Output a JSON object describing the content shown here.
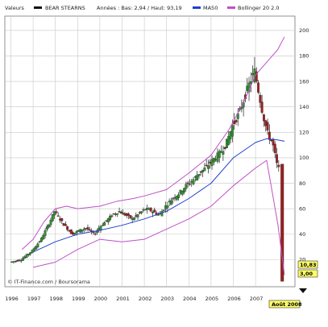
{
  "legend": {
    "label": "Valeurs",
    "series_name": "BEAR STEARNS",
    "range_text": "Années : Bas: 2,94 / Haut: 93,19",
    "ma_label": "MA50",
    "bollinger_label": "Bollinger 20 2.0"
  },
  "credit": "© IT-Finance.com / Boursorama",
  "price_tags": [
    "10,83",
    "3,00"
  ],
  "date_tag": "Août 2008",
  "colors": {
    "price_black": "#111111",
    "candle_up": "#2f8f2f",
    "candle_down": "#a02020",
    "ma50": "#1f3fd0",
    "bollinger": "#c050c8",
    "grid": "#c8c8c8",
    "tag_bg": "#ffff66"
  },
  "chart_data": {
    "type": "line",
    "title": "",
    "xlabel": "",
    "ylabel": "",
    "x_ticks": [
      "1996",
      "1997",
      "1998",
      "1999",
      "2000",
      "2001",
      "2002",
      "2003",
      "2004",
      "2005",
      "2006",
      "2007"
    ],
    "y_ticks": [
      20,
      40,
      60,
      80,
      100,
      120,
      140,
      160,
      180,
      200
    ],
    "xlim": [
      1995.8,
      2008.7
    ],
    "ylim": [
      0,
      210
    ],
    "grid": true,
    "legend_position": "top",
    "series": [
      {
        "name": "BEAR STEARNS",
        "x": [
          1996.0,
          1996.5,
          1997.0,
          1997.4,
          1997.8,
          1998.0,
          1998.4,
          1998.8,
          1999.0,
          1999.4,
          1999.8,
          2000.0,
          2000.3,
          2000.6,
          2000.9,
          2001.2,
          2001.5,
          2001.8,
          2002.1,
          2002.4,
          2002.7,
          2003.0,
          2003.3,
          2003.6,
          2003.9,
          2004.2,
          2004.5,
          2004.8,
          2005.1,
          2005.4,
          2005.7,
          2006.0,
          2006.3,
          2006.6,
          2006.8,
          2007.0,
          2007.2,
          2007.4,
          2007.6,
          2007.8,
          2008.0,
          2008.15,
          2008.3
        ],
        "values": [
          18,
          20,
          27,
          36,
          50,
          58,
          48,
          40,
          42,
          45,
          40,
          45,
          50,
          55,
          58,
          55,
          52,
          56,
          60,
          58,
          55,
          62,
          68,
          72,
          78,
          82,
          88,
          92,
          98,
          103,
          110,
          125,
          135,
          150,
          160,
          168,
          150,
          132,
          118,
          112,
          95,
          84,
          10.83
        ]
      },
      {
        "name": "MA50",
        "x": [
          1997.0,
          1998.0,
          1999.0,
          2000.0,
          2001.0,
          2002.0,
          2003.0,
          2004.0,
          2005.0,
          2006.0,
          2007.0,
          2007.5,
          2008.0,
          2008.3
        ],
        "values": [
          26,
          34,
          40,
          43,
          47,
          52,
          58,
          68,
          80,
          100,
          112,
          115,
          114,
          113
        ]
      },
      {
        "name": "Bollinger 20 2.0",
        "x": [
          1996.5,
          1997.0,
          1997.5,
          1998.0,
          1998.5,
          1999.0,
          2000.0,
          2000.8,
          2001.5,
          2002.0,
          2003.0,
          2004.0,
          2005.0,
          2005.8,
          2006.5,
          2007.0,
          2007.5,
          2008.0,
          2008.3
        ],
        "values": [
          28,
          36,
          50,
          60,
          62,
          60,
          62,
          66,
          68,
          70,
          75,
          88,
          102,
          122,
          145,
          165,
          175,
          185,
          195
        ]
      },
      {
        "name": "Bollinger 20 2.0",
        "x": [
          1997.0,
          1998.0,
          1999.0,
          2000.0,
          2001.0,
          2002.0,
          2003.0,
          2004.0,
          2005.0,
          2006.0,
          2007.0,
          2007.5,
          2008.0,
          2008.3
        ],
        "values": [
          14,
          18,
          28,
          36,
          34,
          36,
          44,
          52,
          62,
          78,
          92,
          98,
          48,
          8
        ]
      }
    ]
  }
}
